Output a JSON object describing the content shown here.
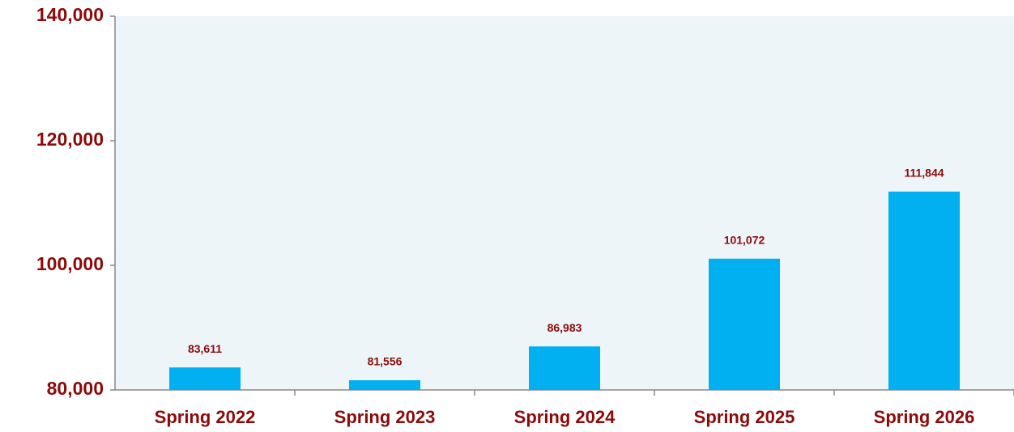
{
  "chart_data": {
    "type": "bar",
    "categories": [
      "Spring 2022",
      "Spring 2023",
      "Spring 2024",
      "Spring 2025",
      "Spring 2026"
    ],
    "values": [
      83611,
      81556,
      86983,
      101072,
      111844
    ],
    "value_labels": [
      "83,611",
      "81,556",
      "86,983",
      "101,072",
      "111,844"
    ],
    "color": "#00b0f0",
    "ylim": [
      80000,
      140000
    ],
    "yticks": [
      {
        "value": 80000,
        "label": "80,000"
      },
      {
        "value": 100000,
        "label": "100,000"
      },
      {
        "value": 120000,
        "label": "120,000"
      },
      {
        "value": 140000,
        "label": "140,000"
      }
    ],
    "grid": false
  }
}
